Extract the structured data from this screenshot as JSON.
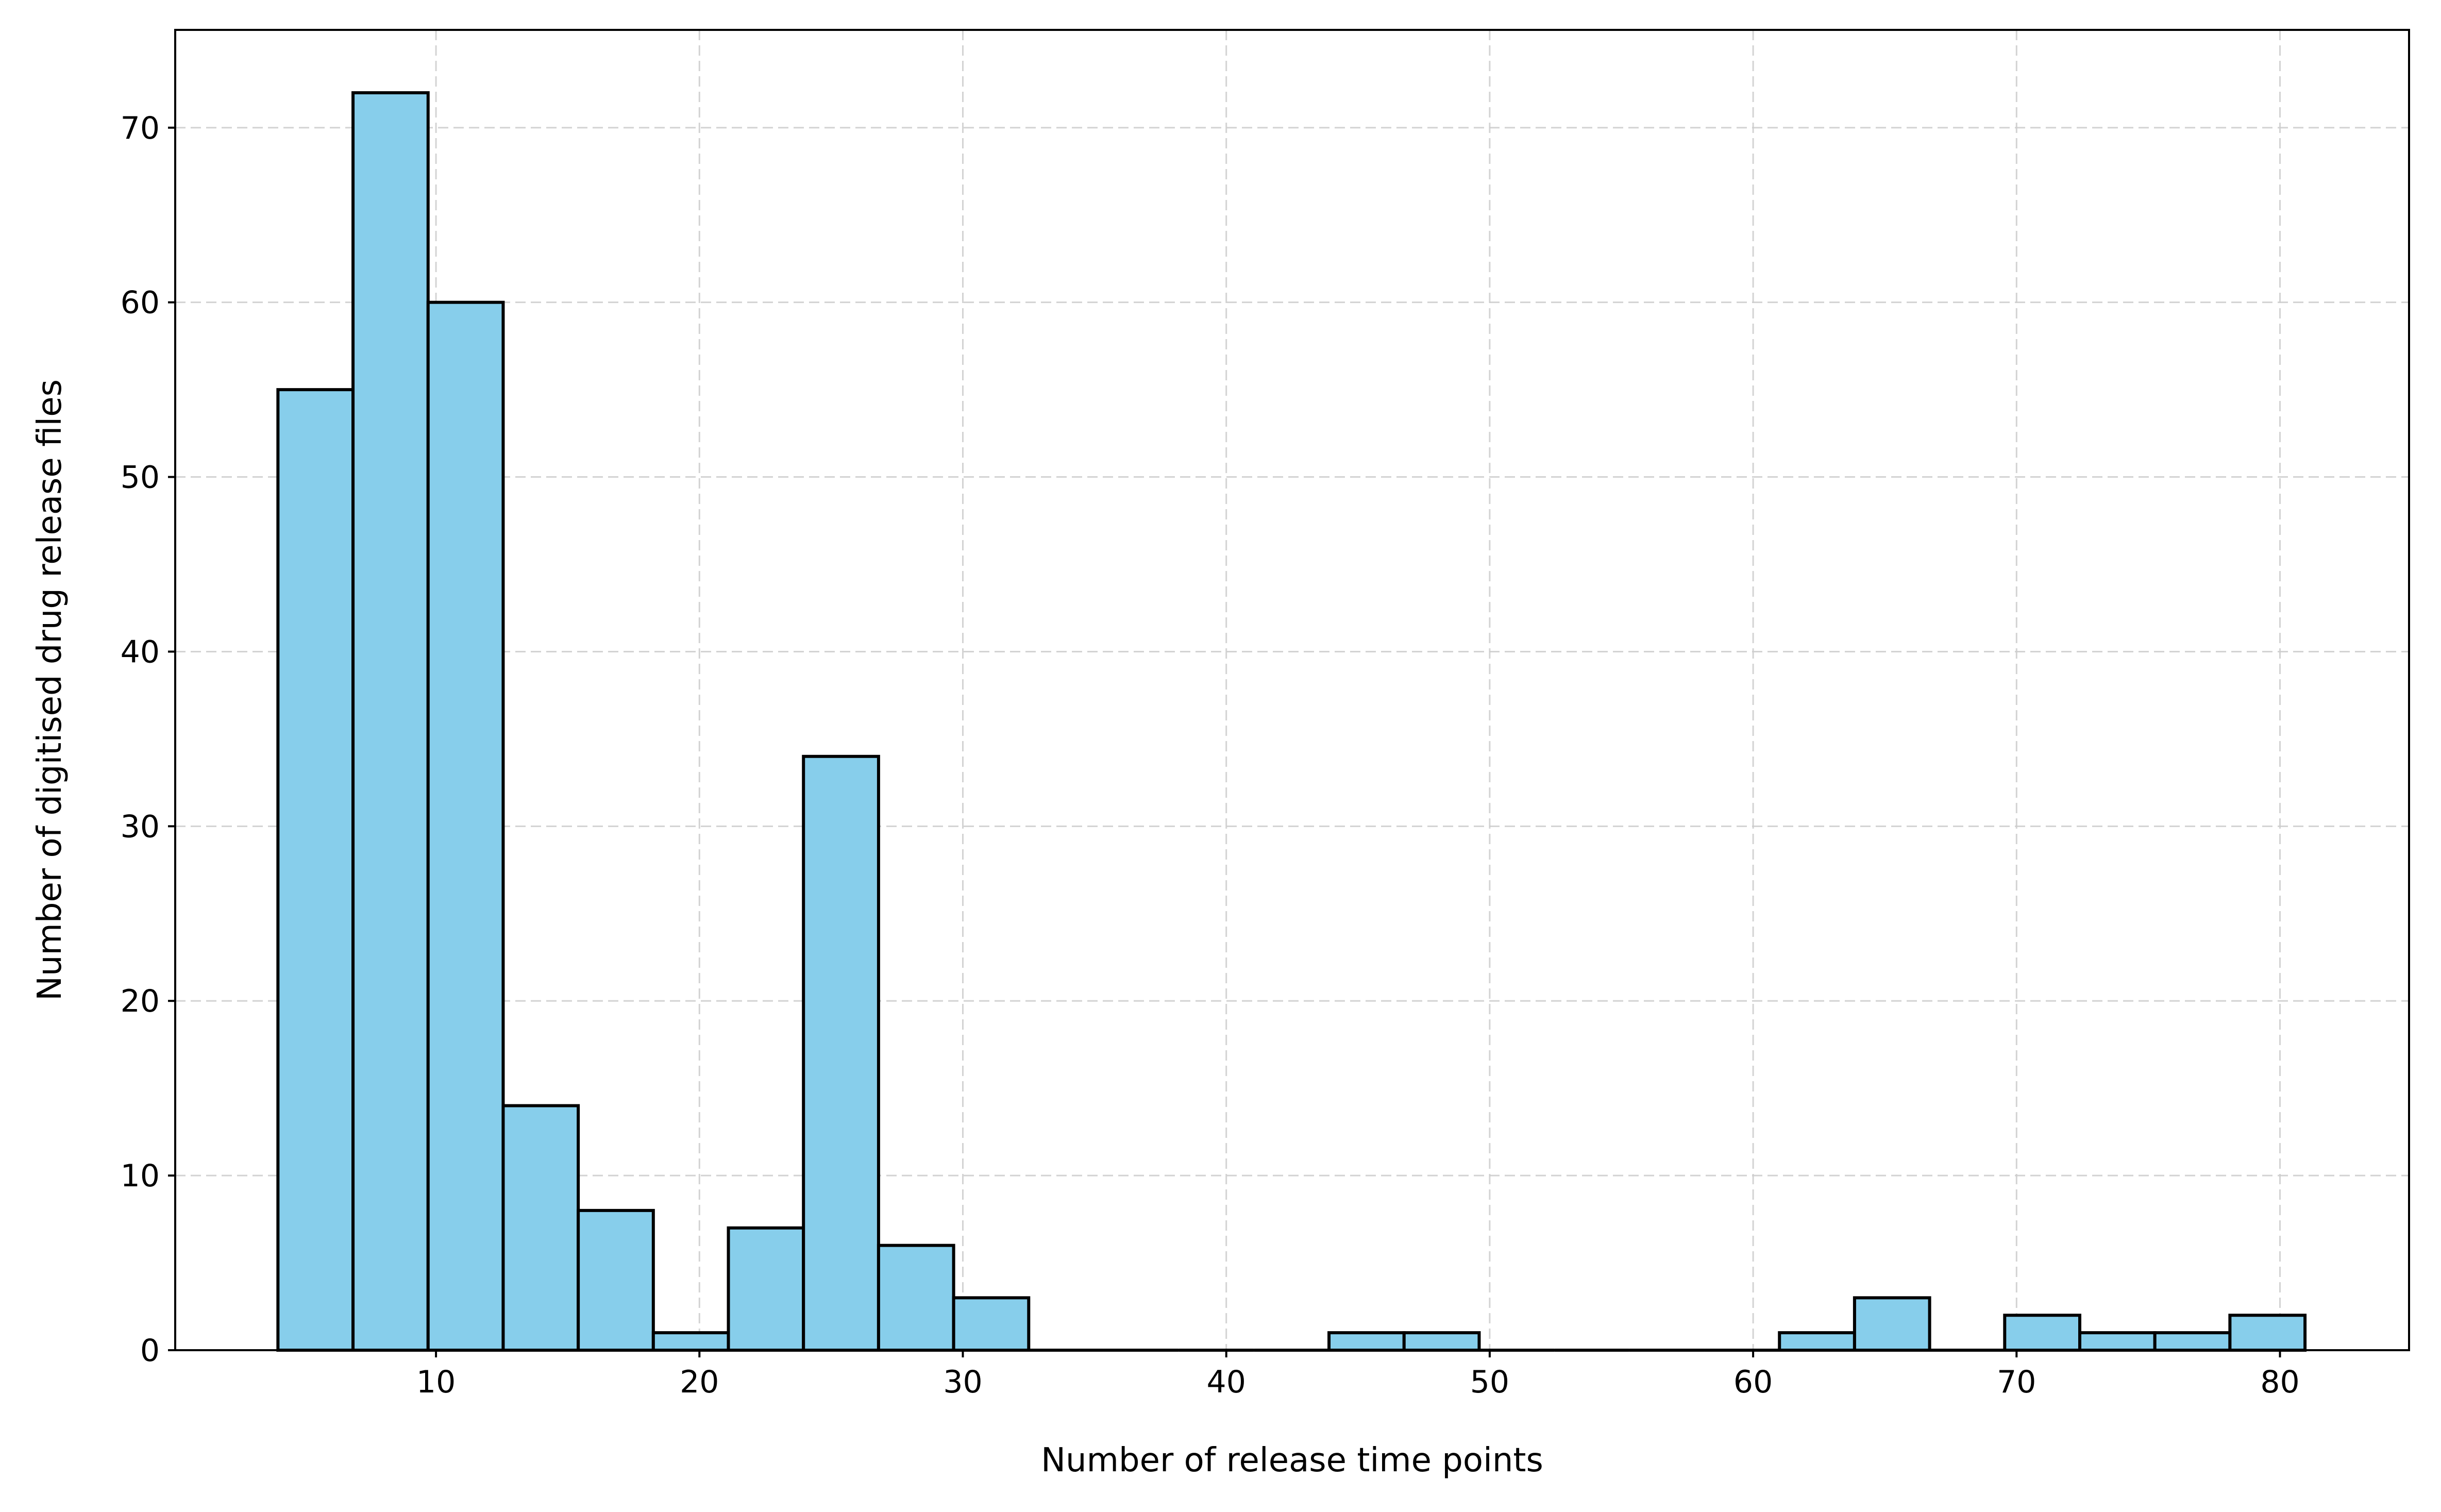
{
  "chart_data": {
    "type": "bar",
    "subtype": "histogram",
    "title": "",
    "xlabel": "Number of release time points",
    "ylabel": "Number of digitised drug release files",
    "xlim": [
      0.1,
      84.9
    ],
    "ylim": [
      0,
      75.6
    ],
    "x_ticks": [
      10,
      20,
      30,
      40,
      50,
      60,
      70,
      80
    ],
    "y_ticks": [
      0,
      10,
      20,
      30,
      40,
      50,
      60,
      70
    ],
    "grid": true,
    "grid_style": "dashed",
    "bar_color": "#87CEEB",
    "edge_color": "#000000",
    "bin_start": 4,
    "bin_width": 2.85,
    "values": [
      55,
      72,
      60,
      14,
      8,
      1,
      7,
      34,
      6,
      3,
      0,
      0,
      0,
      0,
      1,
      1,
      0,
      0,
      0,
      0,
      1,
      3,
      0,
      2,
      1,
      1,
      2
    ]
  }
}
